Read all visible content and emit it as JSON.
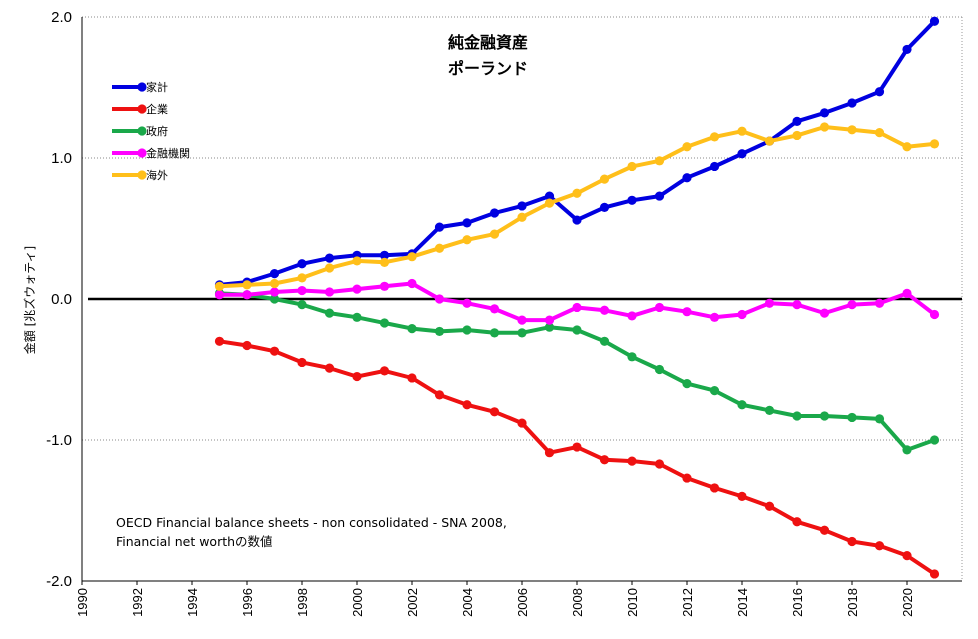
{
  "chart_data": {
    "type": "line",
    "title": "純金融資産",
    "subtitle": "ポーランド",
    "xlabel": "",
    "ylabel": "金額 [兆ズウォティ]",
    "xlim": [
      1990,
      2022
    ],
    "ylim": [
      -2.0,
      2.0
    ],
    "yticks": [
      2.0,
      1.0,
      0.0,
      -1.0,
      -2.0
    ],
    "ytick_labels": [
      "2.0",
      "1.0",
      "0.0",
      "-1.0",
      "-2.0"
    ],
    "xticks": [
      "1990",
      "1992",
      "1994",
      "1996",
      "1998",
      "2000",
      "2002",
      "2004",
      "2006",
      "2008",
      "2010",
      "2012",
      "2014",
      "2016",
      "2018",
      "2020"
    ],
    "grid": "horizontal-dotted",
    "legend_position": "top-left",
    "note_lines": [
      "OECD Financial balance sheets - non consolidated - SNA 2008,",
      "Financial net worthの数値"
    ],
    "x": [
      1995,
      1996,
      1997,
      1998,
      1999,
      2000,
      2001,
      2002,
      2003,
      2004,
      2005,
      2006,
      2007,
      2008,
      2009,
      2010,
      2011,
      2012,
      2013,
      2014,
      2015,
      2016,
      2017,
      2018,
      2019,
      2020,
      2021
    ],
    "series": [
      {
        "name": "家計",
        "color": "#0000e0",
        "values": [
          0.1,
          0.12,
          0.18,
          0.25,
          0.29,
          0.31,
          0.31,
          0.32,
          0.51,
          0.54,
          0.61,
          0.66,
          0.73,
          0.56,
          0.65,
          0.7,
          0.73,
          0.86,
          0.94,
          1.03,
          1.12,
          1.26,
          1.32,
          1.39,
          1.47,
          1.77,
          1.97
        ]
      },
      {
        "name": "企業",
        "color": "#ee1111",
        "values": [
          -0.3,
          -0.33,
          -0.37,
          -0.45,
          -0.49,
          -0.55,
          -0.51,
          -0.56,
          -0.68,
          -0.75,
          -0.8,
          -0.88,
          -1.09,
          -1.05,
          -1.14,
          -1.15,
          -1.17,
          -1.27,
          -1.34,
          -1.4,
          -1.47,
          -1.58,
          -1.64,
          -1.72,
          -1.75,
          -1.82,
          -1.95
        ]
      },
      {
        "name": "政府",
        "color": "#1aa84a",
        "values": [
          0.04,
          0.03,
          0.0,
          -0.04,
          -0.1,
          -0.13,
          -0.17,
          -0.21,
          -0.23,
          -0.22,
          -0.24,
          -0.24,
          -0.2,
          -0.22,
          -0.3,
          -0.41,
          -0.5,
          -0.6,
          -0.65,
          -0.75,
          -0.79,
          -0.83,
          -0.83,
          -0.84,
          -0.85,
          -1.07,
          -1.0
        ]
      },
      {
        "name": "金融機関",
        "color": "#ff00ff",
        "values": [
          0.03,
          0.03,
          0.05,
          0.06,
          0.05,
          0.07,
          0.09,
          0.11,
          0.0,
          -0.03,
          -0.07,
          -0.15,
          -0.15,
          -0.06,
          -0.08,
          -0.12,
          -0.06,
          -0.09,
          -0.13,
          -0.11,
          -0.03,
          -0.04,
          -0.1,
          -0.04,
          -0.03,
          0.04,
          -0.11
        ]
      },
      {
        "name": "海外",
        "color": "#ffbf1a",
        "values": [
          0.09,
          0.1,
          0.11,
          0.15,
          0.22,
          0.27,
          0.26,
          0.3,
          0.36,
          0.42,
          0.46,
          0.58,
          0.68,
          0.75,
          0.85,
          0.94,
          0.98,
          1.08,
          1.15,
          1.19,
          1.12,
          1.16,
          1.22,
          1.2,
          1.18,
          1.08,
          1.1
        ]
      }
    ]
  }
}
